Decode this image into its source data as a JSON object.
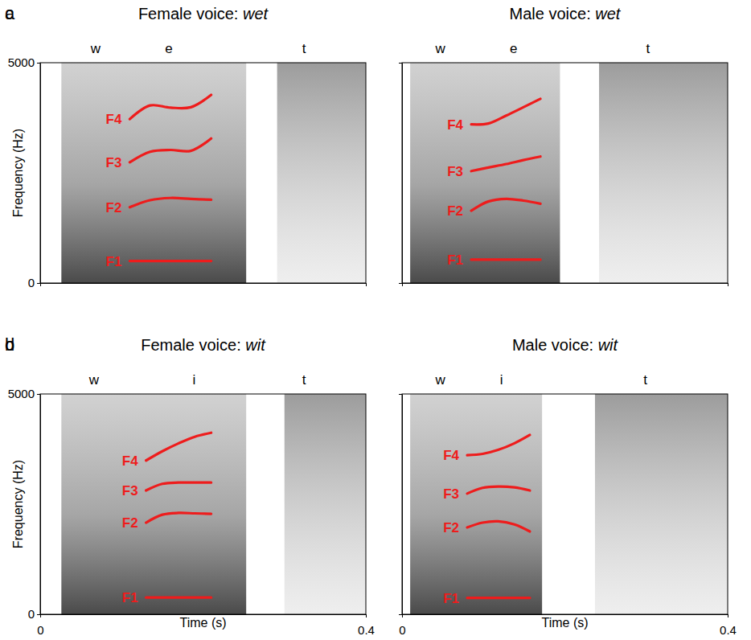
{
  "chart_data": [
    {
      "type": "line",
      "panel": "a",
      "title": "Female voice: wet",
      "ylabel": "Frequency (Hz)",
      "xlim": [
        0,
        0.4
      ],
      "ylim": [
        0,
        5000
      ],
      "xticks": [
        0,
        0.4
      ],
      "yticks": [
        0,
        5000
      ],
      "tick_labels": "y",
      "segments": [
        {
          "label": "w",
          "x": 0.068
        },
        {
          "label": "e",
          "x": 0.158
        },
        {
          "label": "t",
          "x": 0.324
        }
      ],
      "voiced": [
        0.026,
        0.253
      ],
      "burst": [
        0.291,
        0.4
      ],
      "x": [
        0.11,
        0.135,
        0.16,
        0.185,
        0.21
      ],
      "series": [
        {
          "name": "F4",
          "color": "#ee1c1c",
          "values": [
            3720,
            4030,
            3980,
            3990,
            4270
          ]
        },
        {
          "name": "F3",
          "color": "#ee1c1c",
          "values": [
            2740,
            2980,
            3020,
            3000,
            3280
          ]
        },
        {
          "name": "F2",
          "color": "#ee1c1c",
          "values": [
            1720,
            1880,
            1930,
            1910,
            1890
          ]
        },
        {
          "name": "F1",
          "color": "#ee1c1c",
          "values": [
            500,
            500,
            500,
            500,
            500
          ]
        }
      ]
    },
    {
      "type": "line",
      "panel": "b",
      "title": "Female voice: wit",
      "xlabel": "Time (s)",
      "ylabel": "Frequency (Hz)",
      "xlim": [
        0,
        0.4
      ],
      "ylim": [
        0,
        5000
      ],
      "xticks": [
        0,
        0.4
      ],
      "yticks": [
        0,
        5000
      ],
      "tick_labels": true,
      "segments": [
        {
          "label": "w",
          "x": 0.066
        },
        {
          "label": "i",
          "x": 0.189
        },
        {
          "label": "t",
          "x": 0.324
        }
      ],
      "voiced": [
        0.026,
        0.253
      ],
      "burst": [
        0.3,
        0.4
      ],
      "x": [
        0.13,
        0.15,
        0.17,
        0.19,
        0.21
      ],
      "series": [
        {
          "name": "F4",
          "color": "#ee1c1c",
          "values": [
            3490,
            3700,
            3880,
            4030,
            4120
          ]
        },
        {
          "name": "F3",
          "color": "#ee1c1c",
          "values": [
            2810,
            2960,
            2990,
            2990,
            2990
          ]
        },
        {
          "name": "F2",
          "color": "#ee1c1c",
          "values": [
            2080,
            2260,
            2300,
            2290,
            2280
          ]
        },
        {
          "name": "F1",
          "color": "#ee1c1c",
          "values": [
            380,
            380,
            380,
            380,
            380
          ]
        }
      ]
    },
    {
      "type": "line",
      "panel": "c",
      "title": "Male voice: wet",
      "xlim": [
        0,
        0.4
      ],
      "ylim": [
        0,
        5000
      ],
      "xticks": [
        0,
        0.4
      ],
      "yticks": [
        0,
        5000
      ],
      "tick_labels": false,
      "segments": [
        {
          "label": "w",
          "x": 0.047
        },
        {
          "label": "e",
          "x": 0.137
        },
        {
          "label": "t",
          "x": 0.302
        }
      ],
      "voiced": [
        0.01,
        0.194
      ],
      "burst": [
        0.242,
        0.4
      ],
      "x": [
        0.085,
        0.106,
        0.128,
        0.149,
        0.17
      ],
      "series": [
        {
          "name": "F4",
          "color": "#ee1c1c",
          "values": [
            3600,
            3620,
            3800,
            3990,
            4180
          ]
        },
        {
          "name": "F3",
          "color": "#ee1c1c",
          "values": [
            2540,
            2620,
            2700,
            2790,
            2870
          ]
        },
        {
          "name": "F2",
          "color": "#ee1c1c",
          "values": [
            1640,
            1850,
            1910,
            1870,
            1800
          ]
        },
        {
          "name": "F1",
          "color": "#ee1c1c",
          "values": [
            530,
            530,
            530,
            530,
            530
          ]
        }
      ]
    },
    {
      "type": "line",
      "panel": "d",
      "title": "Male voice: wit",
      "xlabel": "Time (s)",
      "xlim": [
        0,
        0.4
      ],
      "ylim": [
        0,
        5000
      ],
      "xticks": [
        0,
        0.4
      ],
      "yticks": [
        0,
        5000
      ],
      "tick_labels": "x",
      "segments": [
        {
          "label": "w",
          "x": 0.047
        },
        {
          "label": "i",
          "x": 0.122
        },
        {
          "label": "t",
          "x": 0.299
        }
      ],
      "voiced": [
        0.01,
        0.172
      ],
      "burst": [
        0.237,
        0.4
      ],
      "x": [
        0.08,
        0.099,
        0.118,
        0.138,
        0.157
      ],
      "series": [
        {
          "name": "F4",
          "color": "#ee1c1c",
          "values": [
            3610,
            3640,
            3730,
            3880,
            4070
          ]
        },
        {
          "name": "F3",
          "color": "#ee1c1c",
          "values": [
            2740,
            2870,
            2900,
            2880,
            2810
          ]
        },
        {
          "name": "F2",
          "color": "#ee1c1c",
          "values": [
            1970,
            2080,
            2110,
            2040,
            1880
          ]
        },
        {
          "name": "F1",
          "color": "#ee1c1c",
          "values": [
            370,
            370,
            370,
            370,
            370
          ]
        }
      ]
    }
  ]
}
